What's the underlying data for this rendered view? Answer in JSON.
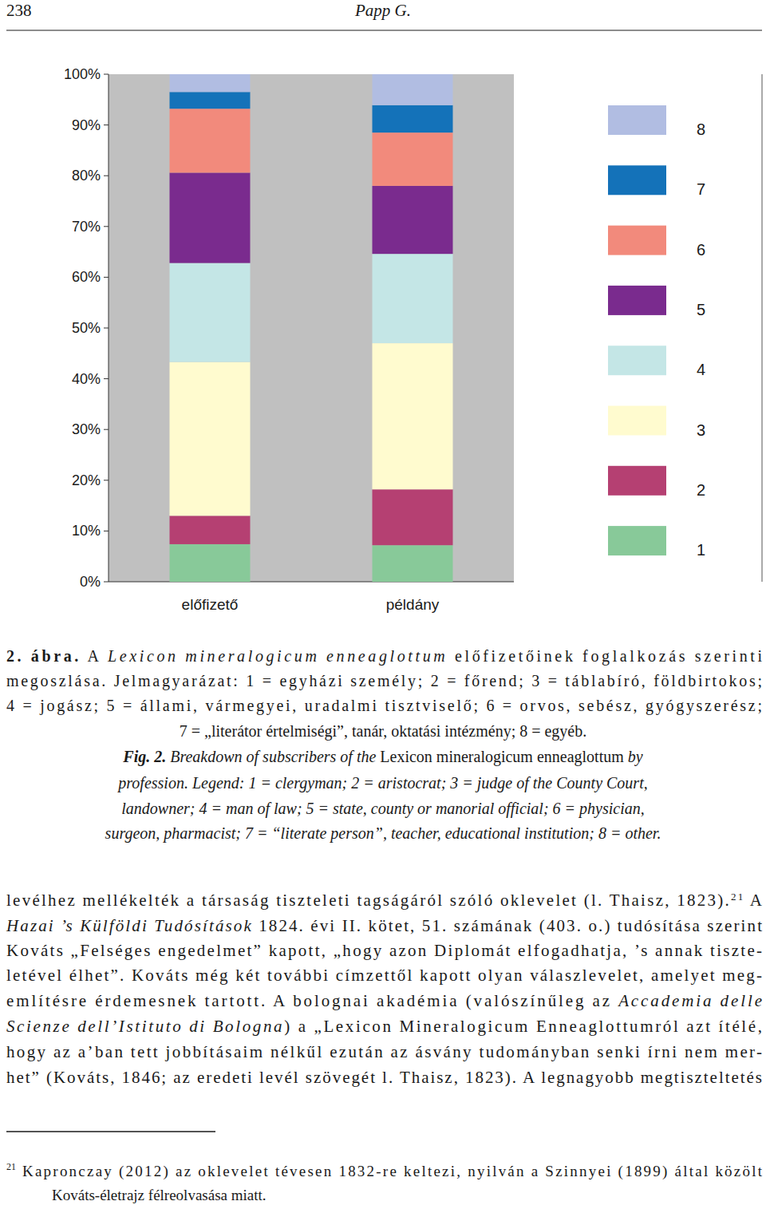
{
  "header": {
    "page_number": "238",
    "running_head": "Papp G."
  },
  "chart_data": {
    "type": "bar",
    "stacked": true,
    "grid": false,
    "legend": "right",
    "categories": [
      "előfizető",
      "példány"
    ],
    "ylim": [
      0,
      100
    ],
    "yticks": [
      {
        "value": 0,
        "label": "0%"
      },
      {
        "value": 10,
        "label": "10%"
      },
      {
        "value": 20,
        "label": "20%"
      },
      {
        "value": 30,
        "label": "30%"
      },
      {
        "value": 40,
        "label": "40%"
      },
      {
        "value": 50,
        "label": "50%"
      },
      {
        "value": 60,
        "label": "60%"
      },
      {
        "value": 70,
        "label": "70%"
      },
      {
        "value": 80,
        "label": "80%"
      },
      {
        "value": 90,
        "label": "90%"
      },
      {
        "value": 100,
        "label": "100%"
      }
    ],
    "series": [
      {
        "name": "1",
        "color": "#88c999",
        "values": [
          7.4,
          7.2
        ]
      },
      {
        "name": "2",
        "color": "#b54072",
        "values": [
          5.6,
          11.0
        ]
      },
      {
        "name": "3",
        "color": "#fffbcf",
        "values": [
          30.3,
          28.8
        ]
      },
      {
        "name": "4",
        "color": "#c4e6e6",
        "values": [
          19.5,
          17.6
        ]
      },
      {
        "name": "5",
        "color": "#7a2b8e",
        "values": [
          17.8,
          13.4
        ]
      },
      {
        "name": "6",
        "color": "#f28a7c",
        "values": [
          12.6,
          10.5
        ]
      },
      {
        "name": "7",
        "color": "#1472b9",
        "values": [
          3.3,
          5.4
        ]
      },
      {
        "name": "8",
        "color": "#b1bde2",
        "values": [
          3.5,
          6.1
        ]
      }
    ]
  },
  "caption_hu": [
    [
      {
        "text": "2. ábra.",
        "bold": true
      },
      {
        "text": " A "
      },
      {
        "text": "Lexicon mineralogicum enneaglottum",
        "italic": true
      },
      {
        "text": " előfizetőinek foglalkozás szerinti"
      }
    ],
    [
      {
        "text": "megoszlása. Jelmagyarázat: 1 = egyházi személy; 2 = főrend; 3 = táblabíró, földbirtokos;"
      }
    ],
    [
      {
        "text": "4 = jogász; 5 = állami, vármegyei, uradalmi tisztviselő; 6 = orvos, sebész, gyógyszerész;"
      }
    ],
    [
      {
        "text": "7 = „literátor értelmiségi”, tanár, oktatási intézmény; 8 = egyéb."
      }
    ]
  ],
  "caption_en": [
    [
      {
        "text": "Fig. 2.",
        "bold": true,
        "italic": true
      },
      {
        "text": " Breakdown of subscribers of the ",
        "italic": true
      },
      {
        "text": "Lexicon mineralogicum enneaglottum"
      },
      {
        "text": " by",
        "italic": true
      }
    ],
    [
      {
        "text": "profession. Legend: 1 = clergyman; 2 = aristocrat; 3 = judge of the County Court,",
        "italic": true
      }
    ],
    [
      {
        "text": "landowner; 4 = man of law; 5 = state, county or manorial official; 6 = physician,",
        "italic": true
      }
    ],
    [
      {
        "text": "surgeon, pharmacist; 7 = “literate person”, teacher, educational institution; 8 = other.",
        "italic": true
      }
    ]
  ],
  "body": [
    [
      {
        "text": "levélhez mellékelték a társaság tiszteleti tagságáról szóló oklevelet (l. Thaisz, 1823)."
      },
      {
        "text": "21",
        "sup": true
      },
      {
        "text": " A"
      }
    ],
    [
      {
        "text": "Hazai ’s Külföldi Tudósítások",
        "italic": true
      },
      {
        "text": " 1824. évi II. kötet, 51. számának (403. o.) tudósítása szerint"
      }
    ],
    [
      {
        "text": "Kováts „Felséges engedelmet” kapott, „hogy azon Diplomát elfogadhatja, ’s annak tiszte-"
      }
    ],
    [
      {
        "text": "letével élhet”. Kováts még két további címzettől kapott olyan válaszlevelet, amelyet meg-"
      }
    ],
    [
      {
        "text": "említésre érdemesnek tartott. A bolognai akadémia (valószínűleg az "
      },
      {
        "text": "Accademia delle",
        "italic": true
      }
    ],
    [
      {
        "text": "Scienze dell’Istituto di Bologna",
        "italic": true
      },
      {
        "text": ") a „Lexicon Mineralogicum Enneaglottumról azt ítélé,"
      }
    ],
    [
      {
        "text": "hogy az a’ban tett jobbításaim nélkűl ezután az ásvány tudományban senki írni nem mer-"
      }
    ],
    [
      {
        "text": "het” (Kováts, 1846; az eredeti levél szövegét l. Thaisz, 1823). A legnagyobb megtiszteltetés"
      }
    ]
  ],
  "footnotes": [
    {
      "mark": "21",
      "lines": [
        [
          {
            "text": "Kapronczay (2012) az oklevelet tévesen 1832-re keltezi, nyilván a Szinnyei (1899) által közölt"
          }
        ],
        [
          {
            "text": "Kováts-életrajz félreolvasása miatt."
          }
        ]
      ]
    }
  ]
}
